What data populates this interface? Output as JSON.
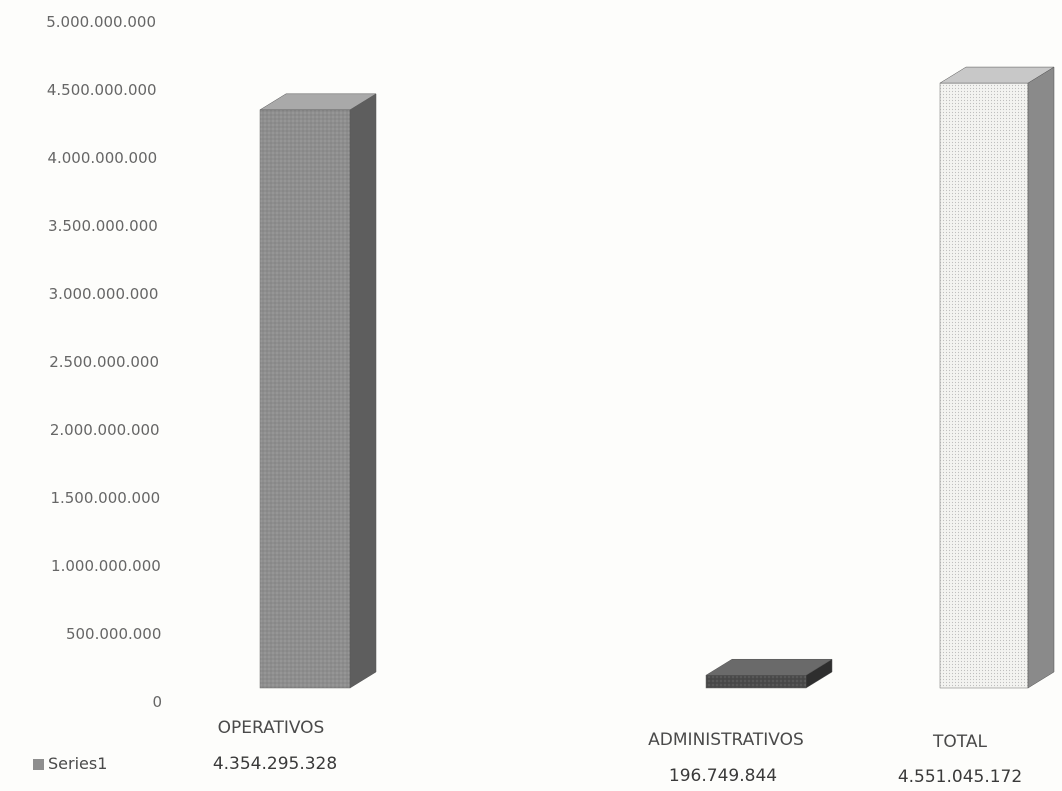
{
  "chart_data": {
    "type": "bar",
    "style": "3d-column",
    "categories": [
      "OPERATIVOS",
      "ADMINISTRATIVOS",
      "TOTAL"
    ],
    "series": [
      {
        "name": "Series1",
        "values": [
          4354295328,
          196749844,
          4551045172
        ]
      }
    ],
    "value_labels": [
      "4.354.295.328",
      "196.749.844",
      "4.551.045.172"
    ],
    "y_ticks": [
      {
        "value": 0,
        "label": "0"
      },
      {
        "value": 500000000,
        "label": "500.000.000"
      },
      {
        "value": 1000000000,
        "label": "1.000.000.000"
      },
      {
        "value": 1500000000,
        "label": "1.500.000.000"
      },
      {
        "value": 2000000000,
        "label": "2.000.000.000"
      },
      {
        "value": 2500000000,
        "label": "2.500.000.000"
      },
      {
        "value": 3000000000,
        "label": "3.000.000.000"
      },
      {
        "value": 3500000000,
        "label": "3.500.000.000"
      },
      {
        "value": 4000000000,
        "label": "4.000.000.000"
      },
      {
        "value": 4500000000,
        "label": "4.500.000.000"
      },
      {
        "value": 5000000000,
        "label": "5.000.000.000"
      }
    ],
    "ylim": [
      0,
      5000000000
    ],
    "title": "",
    "xlabel": "",
    "ylabel": "",
    "grid": false,
    "legend": "bottom-left, inline with data table",
    "bar_colors": [
      "#8e8e8e",
      "#4a4a4a",
      "#f3f3f0"
    ],
    "side_colors": [
      "#5e5e5e",
      "#2e2e2e",
      "#8a8a8a"
    ],
    "top_colors": [
      "#a9a9a9",
      "#6a6a6a",
      "#c8c8c8"
    ],
    "legend_swatch_color": "#8e8e8e"
  }
}
